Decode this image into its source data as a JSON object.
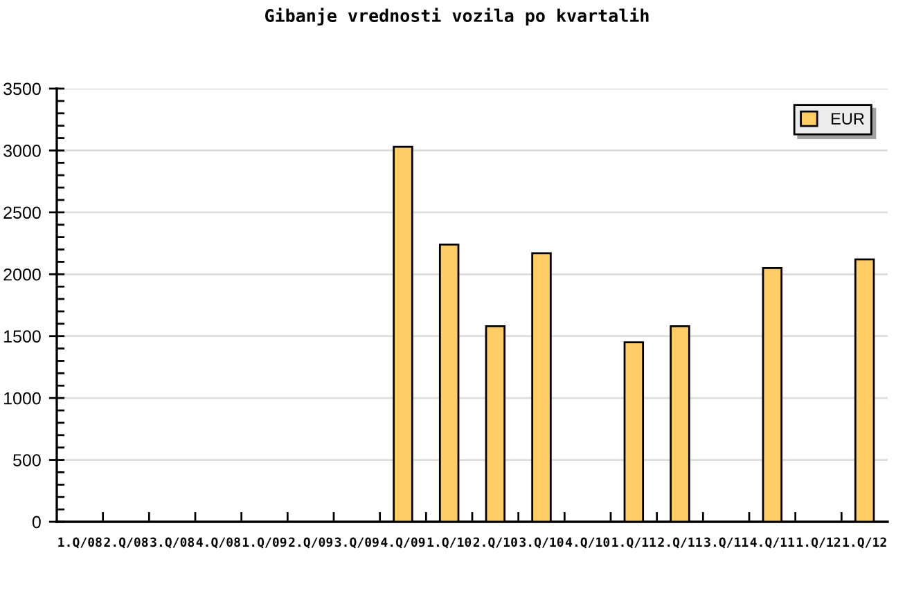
{
  "chart_data": {
    "type": "bar",
    "title": "Gibanje vrednosti vozila po kvartalih",
    "categories": [
      "1.Q/08",
      "2.Q/08",
      "3.Q/08",
      "4.Q/08",
      "1.Q/09",
      "2.Q/09",
      "3.Q/09",
      "4.Q/09",
      "1.Q/10",
      "2.Q/10",
      "3.Q/10",
      "4.Q/10",
      "1.Q/11",
      "2.Q/11",
      "3.Q/11",
      "4.Q/11",
      "1.Q/12",
      "1.Q/12"
    ],
    "series": [
      {
        "name": "EUR",
        "color": "#ffcc66",
        "values": [
          null,
          null,
          null,
          null,
          null,
          null,
          null,
          3030,
          2240,
          1580,
          2170,
          null,
          1450,
          1580,
          null,
          2050,
          null,
          2120
        ]
      }
    ],
    "ylim": [
      0,
      3500
    ],
    "yticks": [
      0,
      {
        "value": 100,
        "label": null
      },
      {
        "value": 200,
        "label": null
      },
      {
        "value": 300,
        "label": null
      },
      {
        "value": 400,
        "label": null
      },
      500,
      {
        "value": 600,
        "label": null
      },
      {
        "value": 700,
        "label": null
      },
      {
        "value": 800,
        "label": null
      },
      {
        "value": 900,
        "label": null
      },
      1000,
      {
        "value": 1100,
        "label": null
      },
      {
        "value": 1200,
        "label": null
      },
      {
        "value": 1300,
        "label": null
      },
      {
        "value": 1400,
        "label": null
      },
      1500,
      {
        "value": 1600,
        "label": null
      },
      {
        "value": 1700,
        "label": null
      },
      {
        "value": 1800,
        "label": null
      },
      {
        "value": 1900,
        "label": null
      },
      2000,
      {
        "value": 2100,
        "label": null
      },
      {
        "value": 2200,
        "label": null
      },
      {
        "value": 2300,
        "label": null
      },
      {
        "value": 2400,
        "label": null
      },
      2500,
      {
        "value": 2600,
        "label": null
      },
      {
        "value": 2700,
        "label": null
      },
      {
        "value": 2800,
        "label": null
      },
      {
        "value": 2900,
        "label": null
      },
      3000,
      {
        "value": 3100,
        "label": null
      },
      {
        "value": 3200,
        "label": null
      },
      {
        "value": 3300,
        "label": null
      },
      {
        "value": 3400,
        "label": null
      },
      3500
    ],
    "grid": "y",
    "legend": "top right"
  }
}
